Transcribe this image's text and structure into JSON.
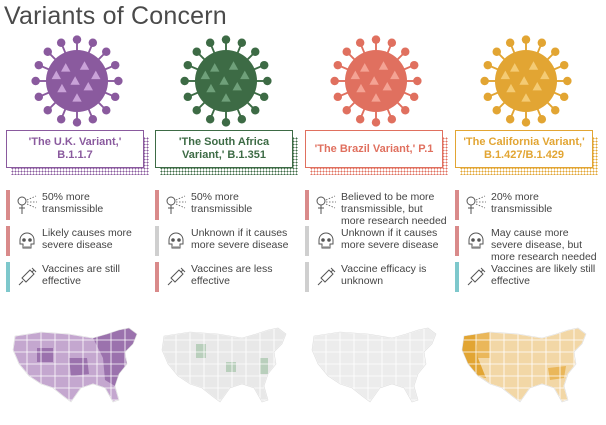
{
  "title": "Variants of Concern",
  "colors": {
    "bar_red": "#d98a8a",
    "bar_gray": "#cfcfcf",
    "bar_teal": "#7ec8cc"
  },
  "variants": [
    {
      "name": "'The U.K. Variant,' B.1.1.7",
      "color": "#8a5a9e",
      "virus_light": "#c9a2d8",
      "map": {
        "fill": "#c4a7cf",
        "dark": "#9b72ad",
        "highlight": "uk"
      },
      "facts": [
        {
          "text": "50% more transmissible",
          "status": "red",
          "icon": "sneeze-icon"
        },
        {
          "text": "Likely causes more severe disease",
          "status": "red",
          "icon": "skull-icon"
        },
        {
          "text": "Vaccines are still effective",
          "status": "teal",
          "icon": "syringe-icon"
        }
      ]
    },
    {
      "name": "'The South Africa Variant,' B.1.351",
      "color": "#3d6b45",
      "virus_light": "#6fa07a",
      "map": {
        "fill": "#e8e8e8",
        "dark": "#b9cfbc",
        "highlight": "sa"
      },
      "facts": [
        {
          "text": "50% more transmissible",
          "status": "red",
          "icon": "sneeze-icon"
        },
        {
          "text": "Unknown if it causes more severe disease",
          "status": "gray",
          "icon": "skull-icon"
        },
        {
          "text": "Vaccines are less effective",
          "status": "red",
          "icon": "syringe-icon"
        }
      ]
    },
    {
      "name": "'The Brazil Variant,' P.1",
      "color": "#e0705f",
      "virus_light": "#f4a394",
      "map": {
        "fill": "#ececec",
        "dark": "#f1c4bc",
        "highlight": "br"
      },
      "facts": [
        {
          "text": "Believed to be more transmissible, but more research needed",
          "status": "red",
          "icon": "sneeze-icon"
        },
        {
          "text": "Unknown if it causes more severe disease",
          "status": "gray",
          "icon": "skull-icon"
        },
        {
          "text": "Vaccine efficacy is unknown",
          "status": "gray",
          "icon": "syringe-icon"
        }
      ]
    },
    {
      "name": "'The California Variant,' B.1.427/B.1.429",
      "color": "#e2a533",
      "virus_light": "#f4cb74",
      "map": {
        "fill": "#f2d7a6",
        "dark": "#e2a533",
        "highlight": "ca"
      },
      "facts": [
        {
          "text": "20% more transmissible",
          "status": "red",
          "icon": "sneeze-icon"
        },
        {
          "text": "May cause more severe disease, but more research needed",
          "status": "red",
          "icon": "skull-icon"
        },
        {
          "text": "Vaccines are likely still effective",
          "status": "teal",
          "icon": "syringe-icon"
        }
      ]
    }
  ]
}
